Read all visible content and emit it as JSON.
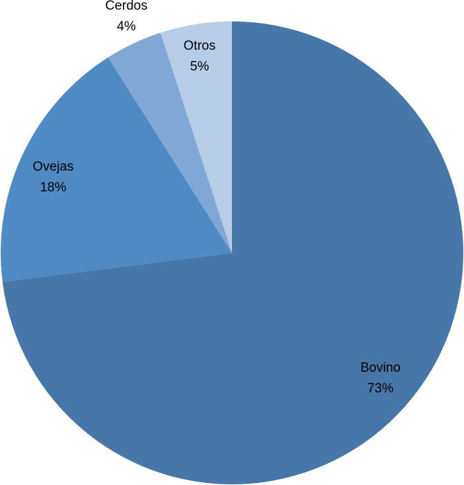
{
  "chart_data": {
    "type": "pie",
    "title": "",
    "start": "12 o'clock",
    "direction": "clockwise",
    "slices": [
      {
        "label": "Bovino",
        "value": 73,
        "value_label": "73%",
        "color": "#4677A8"
      },
      {
        "label": "Ovejas",
        "value": 18,
        "value_label": "18%",
        "color": "#4F8AC4"
      },
      {
        "label": "Cerdos",
        "value": 4,
        "value_label": "4%",
        "color": "#7FA8D7"
      },
      {
        "label": "Otros",
        "value": 5,
        "value_label": "5%",
        "color": "#B7CCE7"
      }
    ]
  }
}
